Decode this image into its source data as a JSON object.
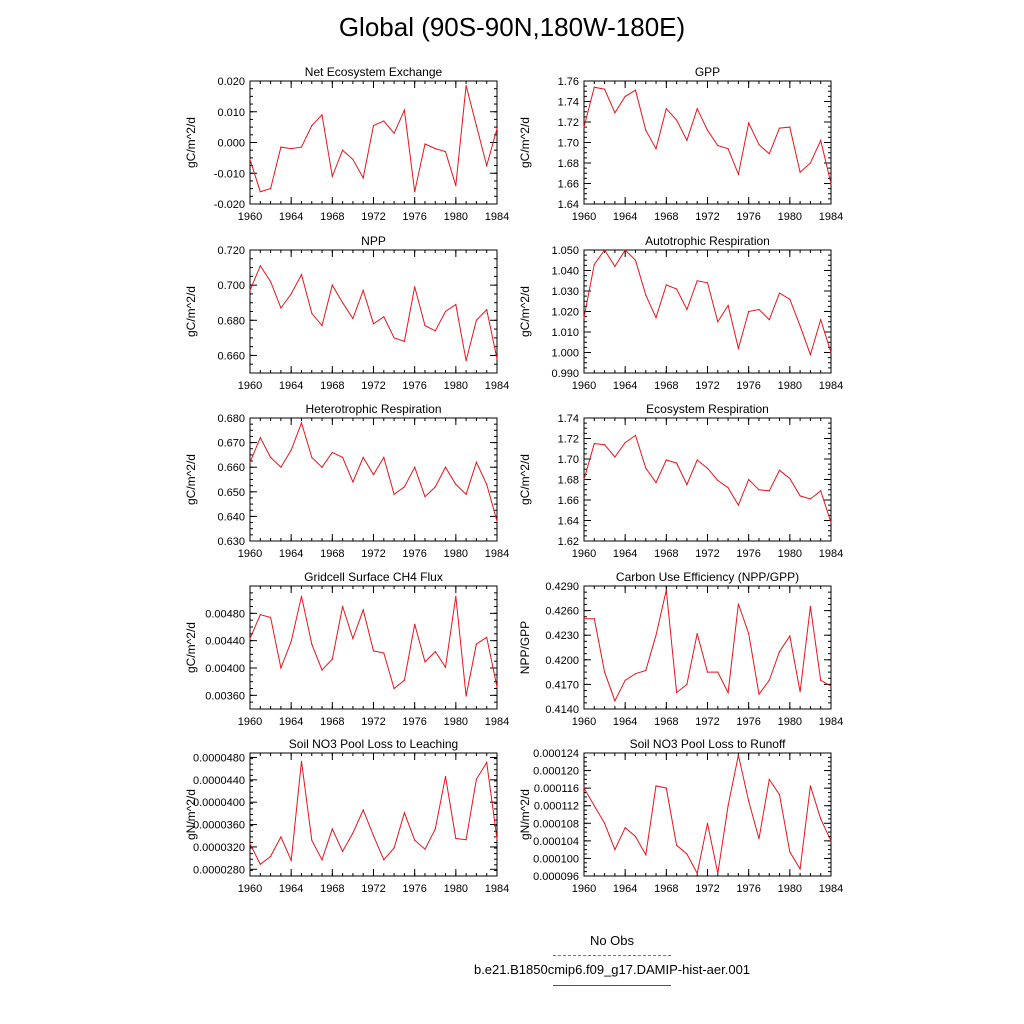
{
  "figure": {
    "title": "Global (90S-90N,180W-180E)",
    "line_color": "#e8141c",
    "obs_color": "#6a6adc"
  },
  "legend": {
    "obs_label": "No Obs",
    "model_label": "b.e21.B1850cmip6.f09_g17.DAMIP-hist-aer.001"
  },
  "chart_data": [
    {
      "type": "line",
      "title": "Net Ecosystem Exchange",
      "xlabel": "",
      "ylabel": "gC/m^2/d",
      "xlim": [
        1960,
        1984
      ],
      "ylim": [
        -0.02,
        0.02
      ],
      "yticks": [
        -0.02,
        -0.01,
        0.0,
        0.01,
        0.02
      ],
      "ytick_labels": [
        "-0.020",
        "-0.010",
        "0.000",
        "0.010",
        "0.020"
      ],
      "xticks": [
        1960,
        1964,
        1968,
        1972,
        1976,
        1980,
        1984
      ],
      "xtick_labels": [
        "1960",
        "1964",
        "1968",
        "1972",
        "1976",
        "1980",
        "1984"
      ],
      "x": [
        1960,
        1961,
        1962,
        1963,
        1964,
        1965,
        1966,
        1967,
        1968,
        1969,
        1970,
        1971,
        1972,
        1973,
        1974,
        1975,
        1976,
        1977,
        1978,
        1979,
        1980,
        1981,
        1982,
        1983,
        1984
      ],
      "values": [
        -0.0055,
        -0.016,
        -0.015,
        -0.0015,
        -0.002,
        -0.0015,
        0.0055,
        0.009,
        -0.011,
        -0.0025,
        -0.0055,
        -0.0115,
        0.0055,
        0.007,
        0.003,
        0.0105,
        -0.016,
        -0.0005,
        -0.002,
        -0.003,
        -0.014,
        0.0185,
        0.0055,
        -0.0075,
        0.0045
      ]
    },
    {
      "type": "line",
      "title": "GPP",
      "xlabel": "",
      "ylabel": "gC/m^2/d",
      "xlim": [
        1960,
        1984
      ],
      "ylim": [
        1.64,
        1.76
      ],
      "yticks": [
        1.64,
        1.66,
        1.68,
        1.7,
        1.72,
        1.74,
        1.76
      ],
      "ytick_labels": [
        "1.64",
        "1.66",
        "1.68",
        "1.70",
        "1.72",
        "1.74",
        "1.76"
      ],
      "xticks": [
        1960,
        1964,
        1968,
        1972,
        1976,
        1980,
        1984
      ],
      "xtick_labels": [
        "1960",
        "1964",
        "1968",
        "1972",
        "1976",
        "1980",
        "1984"
      ],
      "x": [
        1960,
        1961,
        1962,
        1963,
        1964,
        1965,
        1966,
        1967,
        1968,
        1969,
        1970,
        1971,
        1972,
        1973,
        1974,
        1975,
        1976,
        1977,
        1978,
        1979,
        1980,
        1981,
        1982,
        1983,
        1984
      ],
      "values": [
        1.715,
        1.754,
        1.752,
        1.729,
        1.745,
        1.751,
        1.712,
        1.694,
        1.733,
        1.722,
        1.702,
        1.733,
        1.712,
        1.697,
        1.694,
        1.669,
        1.719,
        1.698,
        1.689,
        1.714,
        1.715,
        1.671,
        1.68,
        1.702,
        1.66
      ]
    },
    {
      "type": "line",
      "title": "NPP",
      "xlabel": "",
      "ylabel": "gC/m^2/d",
      "xlim": [
        1960,
        1984
      ],
      "ylim": [
        0.65,
        0.72
      ],
      "yticks": [
        0.66,
        0.68,
        0.7,
        0.72
      ],
      "ytick_labels": [
        "0.660",
        "0.680",
        "0.700",
        "0.720"
      ],
      "xticks": [
        1960,
        1964,
        1968,
        1972,
        1976,
        1980,
        1984
      ],
      "xtick_labels": [
        "1960",
        "1964",
        "1968",
        "1972",
        "1976",
        "1980",
        "1984"
      ],
      "x": [
        1960,
        1961,
        1962,
        1963,
        1964,
        1965,
        1966,
        1967,
        1968,
        1969,
        1970,
        1971,
        1972,
        1973,
        1974,
        1975,
        1976,
        1977,
        1978,
        1979,
        1980,
        1981,
        1982,
        1983,
        1984
      ],
      "values": [
        0.697,
        0.711,
        0.702,
        0.687,
        0.695,
        0.706,
        0.684,
        0.677,
        0.7,
        0.69,
        0.681,
        0.697,
        0.678,
        0.682,
        0.67,
        0.668,
        0.699,
        0.677,
        0.674,
        0.685,
        0.689,
        0.657,
        0.68,
        0.686,
        0.658
      ]
    },
    {
      "type": "line",
      "title": "Autotrophic Respiration",
      "xlabel": "",
      "ylabel": "gC/m^2/d",
      "xlim": [
        1960,
        1984
      ],
      "ylim": [
        0.99,
        1.05
      ],
      "yticks": [
        0.99,
        1.0,
        1.01,
        1.02,
        1.03,
        1.04,
        1.05
      ],
      "ytick_labels": [
        "0.990",
        "1.000",
        "1.010",
        "1.020",
        "1.030",
        "1.040",
        "1.050"
      ],
      "xticks": [
        1960,
        1964,
        1968,
        1972,
        1976,
        1980,
        1984
      ],
      "xtick_labels": [
        "1960",
        "1964",
        "1968",
        "1972",
        "1976",
        "1980",
        "1984"
      ],
      "x": [
        1960,
        1961,
        1962,
        1963,
        1964,
        1965,
        1966,
        1967,
        1968,
        1969,
        1970,
        1971,
        1972,
        1973,
        1974,
        1975,
        1976,
        1977,
        1978,
        1979,
        1980,
        1981,
        1982,
        1983,
        1984
      ],
      "values": [
        1.017,
        1.043,
        1.05,
        1.042,
        1.05,
        1.045,
        1.028,
        1.017,
        1.033,
        1.031,
        1.021,
        1.035,
        1.034,
        1.015,
        1.023,
        1.002,
        1.02,
        1.021,
        1.016,
        1.029,
        1.026,
        1.013,
        0.999,
        1.016,
        1.0
      ]
    },
    {
      "type": "line",
      "title": "Heterotrophic Respiration",
      "xlabel": "",
      "ylabel": "gC/m^2/d",
      "xlim": [
        1960,
        1984
      ],
      "ylim": [
        0.63,
        0.68
      ],
      "yticks": [
        0.63,
        0.64,
        0.65,
        0.66,
        0.67,
        0.68
      ],
      "ytick_labels": [
        "0.630",
        "0.640",
        "0.650",
        "0.660",
        "0.670",
        "0.680"
      ],
      "xticks": [
        1960,
        1964,
        1968,
        1972,
        1976,
        1980,
        1984
      ],
      "xtick_labels": [
        "1960",
        "1964",
        "1968",
        "1972",
        "1976",
        "1980",
        "1984"
      ],
      "x": [
        1960,
        1961,
        1962,
        1963,
        1964,
        1965,
        1966,
        1967,
        1968,
        1969,
        1970,
        1971,
        1972,
        1973,
        1974,
        1975,
        1976,
        1977,
        1978,
        1979,
        1980,
        1981,
        1982,
        1983,
        1984
      ],
      "values": [
        0.662,
        0.672,
        0.664,
        0.66,
        0.667,
        0.678,
        0.664,
        0.66,
        0.666,
        0.664,
        0.654,
        0.664,
        0.657,
        0.664,
        0.649,
        0.652,
        0.66,
        0.648,
        0.652,
        0.66,
        0.653,
        0.649,
        0.662,
        0.653,
        0.638
      ]
    },
    {
      "type": "line",
      "title": "Ecosystem Respiration",
      "xlabel": "",
      "ylabel": "gC/m^2/d",
      "xlim": [
        1960,
        1984
      ],
      "ylim": [
        1.62,
        1.74
      ],
      "yticks": [
        1.62,
        1.64,
        1.66,
        1.68,
        1.7,
        1.72,
        1.74
      ],
      "ytick_labels": [
        "1.62",
        "1.64",
        "1.66",
        "1.68",
        "1.70",
        "1.72",
        "1.74"
      ],
      "xticks": [
        1960,
        1964,
        1968,
        1972,
        1976,
        1980,
        1984
      ],
      "xtick_labels": [
        "1960",
        "1964",
        "1968",
        "1972",
        "1976",
        "1980",
        "1984"
      ],
      "x": [
        1960,
        1961,
        1962,
        1963,
        1964,
        1965,
        1966,
        1967,
        1968,
        1969,
        1970,
        1971,
        1972,
        1973,
        1974,
        1975,
        1976,
        1977,
        1978,
        1979,
        1980,
        1981,
        1982,
        1983,
        1984
      ],
      "values": [
        1.68,
        1.715,
        1.714,
        1.702,
        1.716,
        1.723,
        1.691,
        1.677,
        1.699,
        1.696,
        1.675,
        1.699,
        1.691,
        1.679,
        1.672,
        1.655,
        1.68,
        1.67,
        1.669,
        1.689,
        1.681,
        1.664,
        1.661,
        1.669,
        1.638
      ]
    },
    {
      "type": "line",
      "title": "Gridcell Surface CH4 Flux",
      "xlabel": "",
      "ylabel": "gC/m^2/d",
      "xlim": [
        1960,
        1984
      ],
      "ylim": [
        0.0034,
        0.0052
      ],
      "yticks": [
        0.0036,
        0.004,
        0.0044,
        0.0048
      ],
      "ytick_labels": [
        "0.00360",
        "0.00400",
        "0.00440",
        "0.00480"
      ],
      "xticks": [
        1960,
        1964,
        1968,
        1972,
        1976,
        1980,
        1984
      ],
      "xtick_labels": [
        "1960",
        "1964",
        "1968",
        "1972",
        "1976",
        "1980",
        "1984"
      ],
      "x": [
        1960,
        1961,
        1962,
        1963,
        1964,
        1965,
        1966,
        1967,
        1968,
        1969,
        1970,
        1971,
        1972,
        1973,
        1974,
        1975,
        1976,
        1977,
        1978,
        1979,
        1980,
        1981,
        1982,
        1983,
        1984
      ],
      "values": [
        0.00443,
        0.00478,
        0.00474,
        0.004,
        0.00439,
        0.00505,
        0.00435,
        0.00397,
        0.00413,
        0.0049,
        0.00443,
        0.00485,
        0.00425,
        0.00422,
        0.0037,
        0.00382,
        0.00464,
        0.00409,
        0.00424,
        0.00401,
        0.00505,
        0.00359,
        0.00435,
        0.00445,
        0.00372
      ]
    },
    {
      "type": "line",
      "title": "Carbon Use Efficiency (NPP/GPP)",
      "xlabel": "",
      "ylabel": "NPP/GPP",
      "xlim": [
        1960,
        1984
      ],
      "ylim": [
        0.414,
        0.429
      ],
      "yticks": [
        0.414,
        0.417,
        0.42,
        0.423,
        0.426,
        0.429
      ],
      "ytick_labels": [
        "0.4140",
        "0.4170",
        "0.4200",
        "0.4230",
        "0.4260",
        "0.4290"
      ],
      "xticks": [
        1960,
        1964,
        1968,
        1972,
        1976,
        1980,
        1984
      ],
      "xtick_labels": [
        "1960",
        "1964",
        "1968",
        "1972",
        "1976",
        "1980",
        "1984"
      ],
      "x": [
        1960,
        1961,
        1962,
        1963,
        1964,
        1965,
        1966,
        1967,
        1968,
        1969,
        1970,
        1971,
        1972,
        1973,
        1974,
        1975,
        1976,
        1977,
        1978,
        1979,
        1980,
        1981,
        1982,
        1983,
        1984
      ],
      "values": [
        0.425,
        0.425,
        0.4185,
        0.415,
        0.4175,
        0.4183,
        0.4187,
        0.423,
        0.4285,
        0.416,
        0.417,
        0.4232,
        0.4185,
        0.4185,
        0.416,
        0.4268,
        0.4232,
        0.4158,
        0.4175,
        0.421,
        0.4229,
        0.4161,
        0.4265,
        0.4175,
        0.4168
      ]
    },
    {
      "type": "line",
      "title": "Soil NO3 Pool Loss to Leaching",
      "xlabel": "",
      "ylabel": "gN/m^2/d",
      "xlim": [
        1960,
        1984
      ],
      "ylim": [
        2.68e-05,
        4.88e-05
      ],
      "yticks": [
        2.8e-05,
        3.2e-05,
        3.6e-05,
        4e-05,
        4.4e-05,
        4.8e-05
      ],
      "ytick_labels": [
        "0.0000280",
        "0.0000320",
        "0.0000360",
        "0.0000400",
        "0.0000440",
        "0.0000480"
      ],
      "xticks": [
        1960,
        1964,
        1968,
        1972,
        1976,
        1980,
        1984
      ],
      "xtick_labels": [
        "1960",
        "1964",
        "1968",
        "1972",
        "1976",
        "1980",
        "1984"
      ],
      "x": [
        1960,
        1961,
        1962,
        1963,
        1964,
        1965,
        1966,
        1967,
        1968,
        1969,
        1970,
        1971,
        1972,
        1973,
        1974,
        1975,
        1976,
        1977,
        1978,
        1979,
        1980,
        1981,
        1982,
        1983,
        1984
      ],
      "values": [
        3.26e-05,
        2.89e-05,
        3.03e-05,
        3.38e-05,
        2.96e-05,
        4.73e-05,
        3.32e-05,
        2.97e-05,
        3.52e-05,
        3.12e-05,
        3.45e-05,
        3.86e-05,
        3.4e-05,
        2.97e-05,
        3.18e-05,
        3.81e-05,
        3.32e-05,
        3.16e-05,
        3.52e-05,
        4.46e-05,
        3.35e-05,
        3.33e-05,
        4.41e-05,
        4.71e-05,
        3.34e-05
      ]
    },
    {
      "type": "line",
      "title": "Soil NO3 Pool Loss to Runoff",
      "xlabel": "",
      "ylabel": "gN/m^2/d",
      "xlim": [
        1960,
        1984
      ],
      "ylim": [
        9.6e-05,
        0.000124
      ],
      "yticks": [
        9.6e-05,
        0.0001,
        0.000104,
        0.000108,
        0.000112,
        0.000116,
        0.00012,
        0.000124
      ],
      "ytick_labels": [
        "0.000096",
        "0.000100",
        "0.000104",
        "0.000108",
        "0.000112",
        "0.000116",
        "0.000120",
        "0.000124"
      ],
      "xticks": [
        1960,
        1964,
        1968,
        1972,
        1976,
        1980,
        1984
      ],
      "xtick_labels": [
        "1960",
        "1964",
        "1968",
        "1972",
        "1976",
        "1980",
        "1984"
      ],
      "x": [
        1960,
        1961,
        1962,
        1963,
        1964,
        1965,
        1966,
        1967,
        1968,
        1969,
        1970,
        1971,
        1972,
        1973,
        1974,
        1975,
        1976,
        1977,
        1978,
        1979,
        1980,
        1981,
        1982,
        1983,
        1984
      ],
      "values": [
        0.000116,
        0.000112,
        0.000108,
        0.000102,
        0.000107,
        0.000105,
        0.0001008,
        0.0001165,
        0.000116,
        0.000103,
        0.000101,
        9.66e-05,
        0.000108,
        9.66e-05,
        0.000112,
        0.0001235,
        0.000113,
        0.0001045,
        0.000118,
        0.0001145,
        0.0001015,
        9.76e-05,
        0.0001165,
        0.000109,
        0.000104
      ]
    }
  ]
}
